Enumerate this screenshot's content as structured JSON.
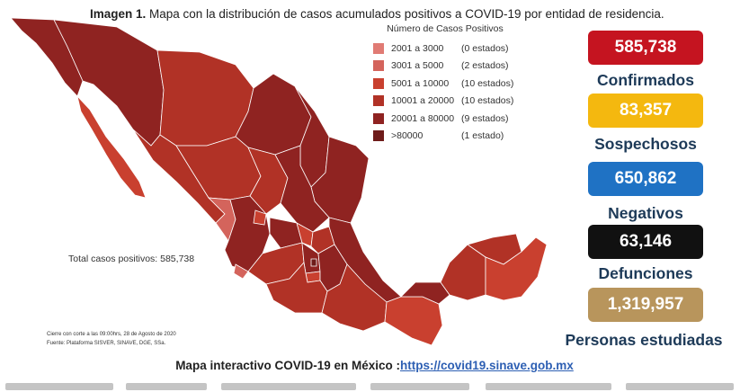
{
  "header": {
    "title_bold": "Imagen 1.",
    "title_rest": " Mapa con la distribución de casos acumulados positivos a COVID-19 por entidad de residencia."
  },
  "legend": {
    "title": "Número de Casos Positivos",
    "items": [
      {
        "range": "2001 a   3000",
        "count": "(0 estados)",
        "color": "#e07b74"
      },
      {
        "range": "3001 a   5000",
        "count": "(2 estados)",
        "color": "#d4645c"
      },
      {
        "range": "5001 a 10000",
        "count": "(10 estados)",
        "color": "#c9402f"
      },
      {
        "range": "10001 a 20000",
        "count": "(10 estados)",
        "color": "#b13226"
      },
      {
        "range": "20001 a 80000",
        "count": "(9 estados)",
        "color": "#8f2321"
      },
      {
        "range": ">80000",
        "count": "(1 estado)",
        "color": "#6e1c1a"
      }
    ]
  },
  "map": {
    "total_label": "Total casos positivos: 585,738",
    "note_line1": "Cierre con corte a las 09:00hrs, 28 de Agosto de 2020",
    "note_line2": "Fuente: Plataforma SISVER, SINAVE, DGE, SSa."
  },
  "stats": [
    {
      "value": "585,738",
      "label": "Confirmados",
      "color": "#c51420"
    },
    {
      "value": "83,357",
      "label": "Sospechosos",
      "color": "#f4b80f"
    },
    {
      "value": "650,862",
      "label": "Negativos",
      "color": "#1f72c4"
    },
    {
      "value": "63,146",
      "label": "Defunciones",
      "color": "#111111"
    },
    {
      "value": "1,319,957",
      "label": "Personas estudiadas",
      "color": "#b8955c"
    }
  ],
  "footer": {
    "text": "Mapa interactivo COVID-19 en México :",
    "link": "https://covid19.sinave.gob.mx"
  }
}
